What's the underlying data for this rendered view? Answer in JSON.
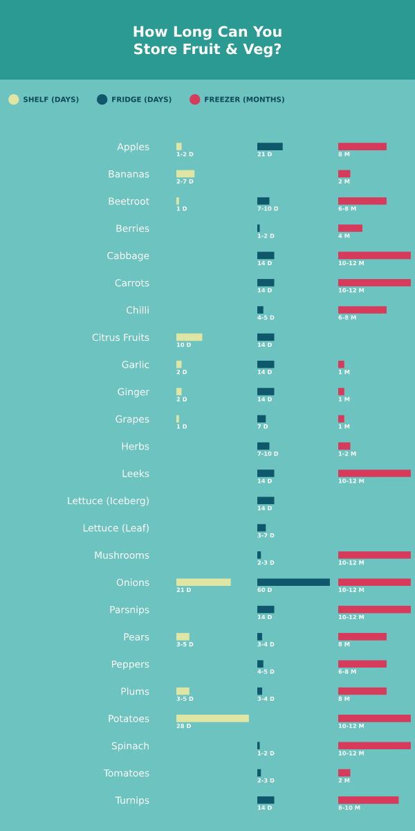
{
  "chart_data": [
    {
      "type": "bar",
      "orientation": "horizontal",
      "legend": "top left",
      "title": "How Long Can You\nStore Fruit & Veg?",
      "categories": [
        "Apples",
        "Bananas",
        "Beetroot",
        "Berries",
        "Cabbage",
        "Carrots",
        "Chilli",
        "Citrus Fruits",
        "Garlic",
        "Ginger",
        "Grapes",
        "Herbs",
        "Leeks",
        "Lettuce (Iceberg)",
        "Lettuce (Leaf)",
        "Mushrooms",
        "Onions",
        "Parsnips",
        "Pears",
        "Peppers",
        "Plums",
        "Potatoes",
        "Spinach",
        "Tomatoes",
        "Turnips"
      ],
      "series": [
        {
          "name": "SHELF (DAYS)",
          "color": "#dfe6a4",
          "values": [
            2,
            7,
            1,
            null,
            null,
            null,
            null,
            10,
            2,
            2,
            1,
            null,
            null,
            null,
            null,
            null,
            21,
            null,
            5,
            null,
            5,
            28,
            null,
            null,
            null
          ],
          "value_labels": [
            "1-2 D",
            "2-7 D",
            "1 D",
            null,
            null,
            null,
            null,
            "10 D",
            "2 D",
            "2 D",
            "1 D",
            null,
            null,
            null,
            null,
            null,
            "21 D",
            null,
            "3-5 D",
            null,
            "3-5 D",
            "28 D",
            null,
            null,
            null
          ]
        }
      ]
    },
    {
      "type": "bar",
      "orientation": "horizontal",
      "legend": "top left",
      "categories": [
        null,
        null,
        null,
        null,
        null,
        null,
        null,
        null,
        null,
        null,
        null,
        null,
        null,
        null,
        null,
        null,
        null,
        null,
        null,
        null,
        null,
        null,
        null,
        null,
        null
      ],
      "series": [
        {
          "name": "FRIDGE (DAYS)",
          "color": "#0f586b",
          "values": [
            21,
            null,
            10,
            2,
            14,
            14,
            5,
            14,
            14,
            14,
            7,
            10,
            14,
            14,
            7,
            3,
            60,
            14,
            4,
            5,
            4,
            null,
            2,
            3,
            14
          ],
          "value_labels": [
            "21 D",
            null,
            "7-10 D",
            "1-2 D",
            "14 D",
            "14 D",
            "4-5 D",
            "14 D",
            "14 D",
            "14 D",
            "7 D",
            "7-10 D",
            "14 D",
            "14 D",
            "3-7 D",
            "2-3 D",
            "60 D",
            "14 D",
            "3-4 D",
            "4-5 D",
            "3-4 D",
            null,
            "1-2 D",
            "2-3 D",
            "14 D"
          ]
        }
      ]
    },
    {
      "type": "bar",
      "orientation": "horizontal",
      "legend": "top left",
      "categories": [
        null,
        null,
        null,
        null,
        null,
        null,
        null,
        null,
        null,
        null,
        null,
        null,
        null,
        null,
        null,
        null,
        null,
        null,
        null,
        null,
        null,
        null,
        null,
        null,
        null
      ],
      "series": [
        {
          "name": "FREEZER (MONTHS)",
          "color": "#d63b5b",
          "values": [
            8,
            2,
            8,
            4,
            12,
            12,
            8,
            null,
            1,
            1,
            1,
            2,
            12,
            null,
            null,
            12,
            12,
            12,
            8,
            8,
            8,
            12,
            12,
            2,
            10
          ],
          "value_labels": [
            "8 M",
            "2 M",
            "6-8 M",
            "4 M",
            "10-12 M",
            "10-12 M",
            "6-8 M",
            null,
            "1 M",
            "1 M",
            "1 M",
            "1-2 M",
            "10-12 M",
            null,
            null,
            "10-12 M",
            "10-12 M",
            "10-12 M",
            "8 M",
            "6-8 M",
            "8 M",
            "10-12 M",
            "10-12 M",
            "2 M",
            "8-10 M"
          ]
        }
      ]
    }
  ]
}
